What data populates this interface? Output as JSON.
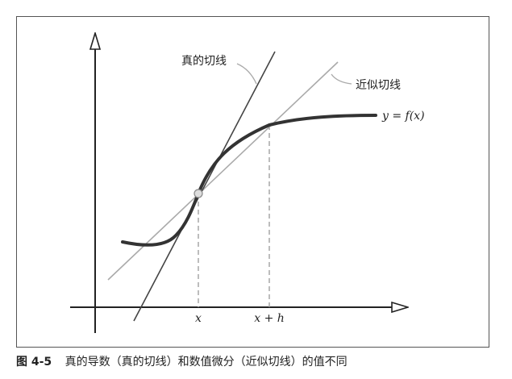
{
  "figure": {
    "number": "图 4-5",
    "caption": "真的导数（真的切线）和数值微分（近似切线）的值不同"
  },
  "labels": {
    "true_tangent": "真的切线",
    "approx_tangent": "近似切线",
    "function": "y = f(x)",
    "x_tick": "x",
    "xh_tick": "x + h"
  },
  "colors": {
    "curve": "#333333",
    "true_tangent": "#444444",
    "approx_tangent": "#aaaaaa",
    "axes": "#222222",
    "dashed_guides": "#999999",
    "point_fill": "#dddddd"
  }
}
